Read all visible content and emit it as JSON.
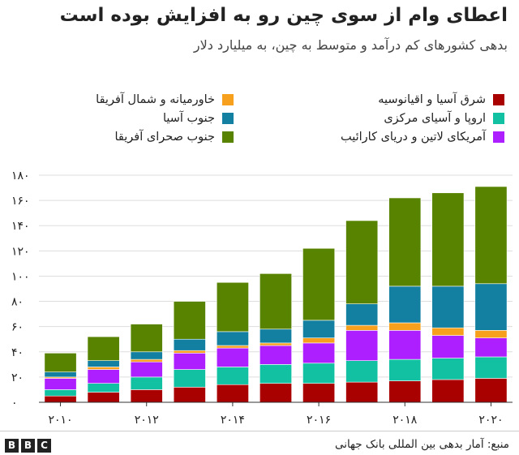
{
  "chart_data": {
    "type": "bar",
    "stacked": true,
    "title": "اعطای وام از سوی چین رو به افزایش بوده است",
    "subtitle": "بدهی کشورهای کم درآمد و متوسط به چین، به میلیارد دلار",
    "categories": [
      "2010",
      "2011",
      "2012",
      "2013",
      "2014",
      "2015",
      "2016",
      "2017",
      "2018",
      "2019",
      "2020"
    ],
    "x_tick_labels": [
      "۲۰۱۰",
      "۲۰۱۲",
      "۲۰۱۴",
      "۲۰۱۶",
      "۲۰۱۸",
      "۲۰۲۰"
    ],
    "x_tick_categories": [
      "2010",
      "2012",
      "2014",
      "2016",
      "2018",
      "2020"
    ],
    "ylim": [
      0,
      180
    ],
    "y_ticks": [
      0,
      20,
      40,
      60,
      80,
      100,
      120,
      140,
      160,
      180
    ],
    "y_tick_labels": [
      "۰",
      "۲۰",
      "۴۰",
      "۶۰",
      "۸۰",
      "۱۰۰",
      "۱۲۰",
      "۱۴۰",
      "۱۶۰",
      "۱۸۰"
    ],
    "grid": true,
    "legend_position": "top",
    "series": [
      {
        "name": "شرق آسیا و اقیانوسیه",
        "color": "#a90000",
        "values": [
          5,
          8,
          10,
          12,
          14,
          15,
          15,
          16,
          17,
          18,
          19
        ]
      },
      {
        "name": "اروپا و آسیای مرکزی",
        "color": "#12c1a1",
        "values": [
          5,
          7,
          10,
          14,
          14,
          15,
          16,
          17,
          17,
          17,
          17
        ]
      },
      {
        "name": "آمریکای لاتین و دریای کارائیب",
        "color": "#ad1fff",
        "values": [
          9,
          11,
          12,
          13,
          15,
          15,
          16,
          24,
          23,
          18,
          15
        ]
      },
      {
        "name": "خاورمیانه و شمال آفریقا",
        "color": "#f7a01d",
        "values": [
          1,
          2,
          2,
          2,
          2,
          2,
          4,
          4,
          6,
          6,
          6
        ]
      },
      {
        "name": "جنوب آسیا",
        "color": "#1380a1",
        "values": [
          4,
          5,
          6,
          9,
          11,
          11,
          14,
          17,
          29,
          33,
          37
        ]
      },
      {
        "name": "جنوب صحرای آفریقا",
        "color": "#588300",
        "values": [
          15,
          19,
          22,
          30,
          39,
          44,
          57,
          66,
          70,
          74,
          77
        ]
      }
    ]
  },
  "footer": {
    "source": "منبع: آمار بدهی بین المللی بانک جهانی",
    "logo_letters": [
      "B",
      "B",
      "C"
    ]
  }
}
